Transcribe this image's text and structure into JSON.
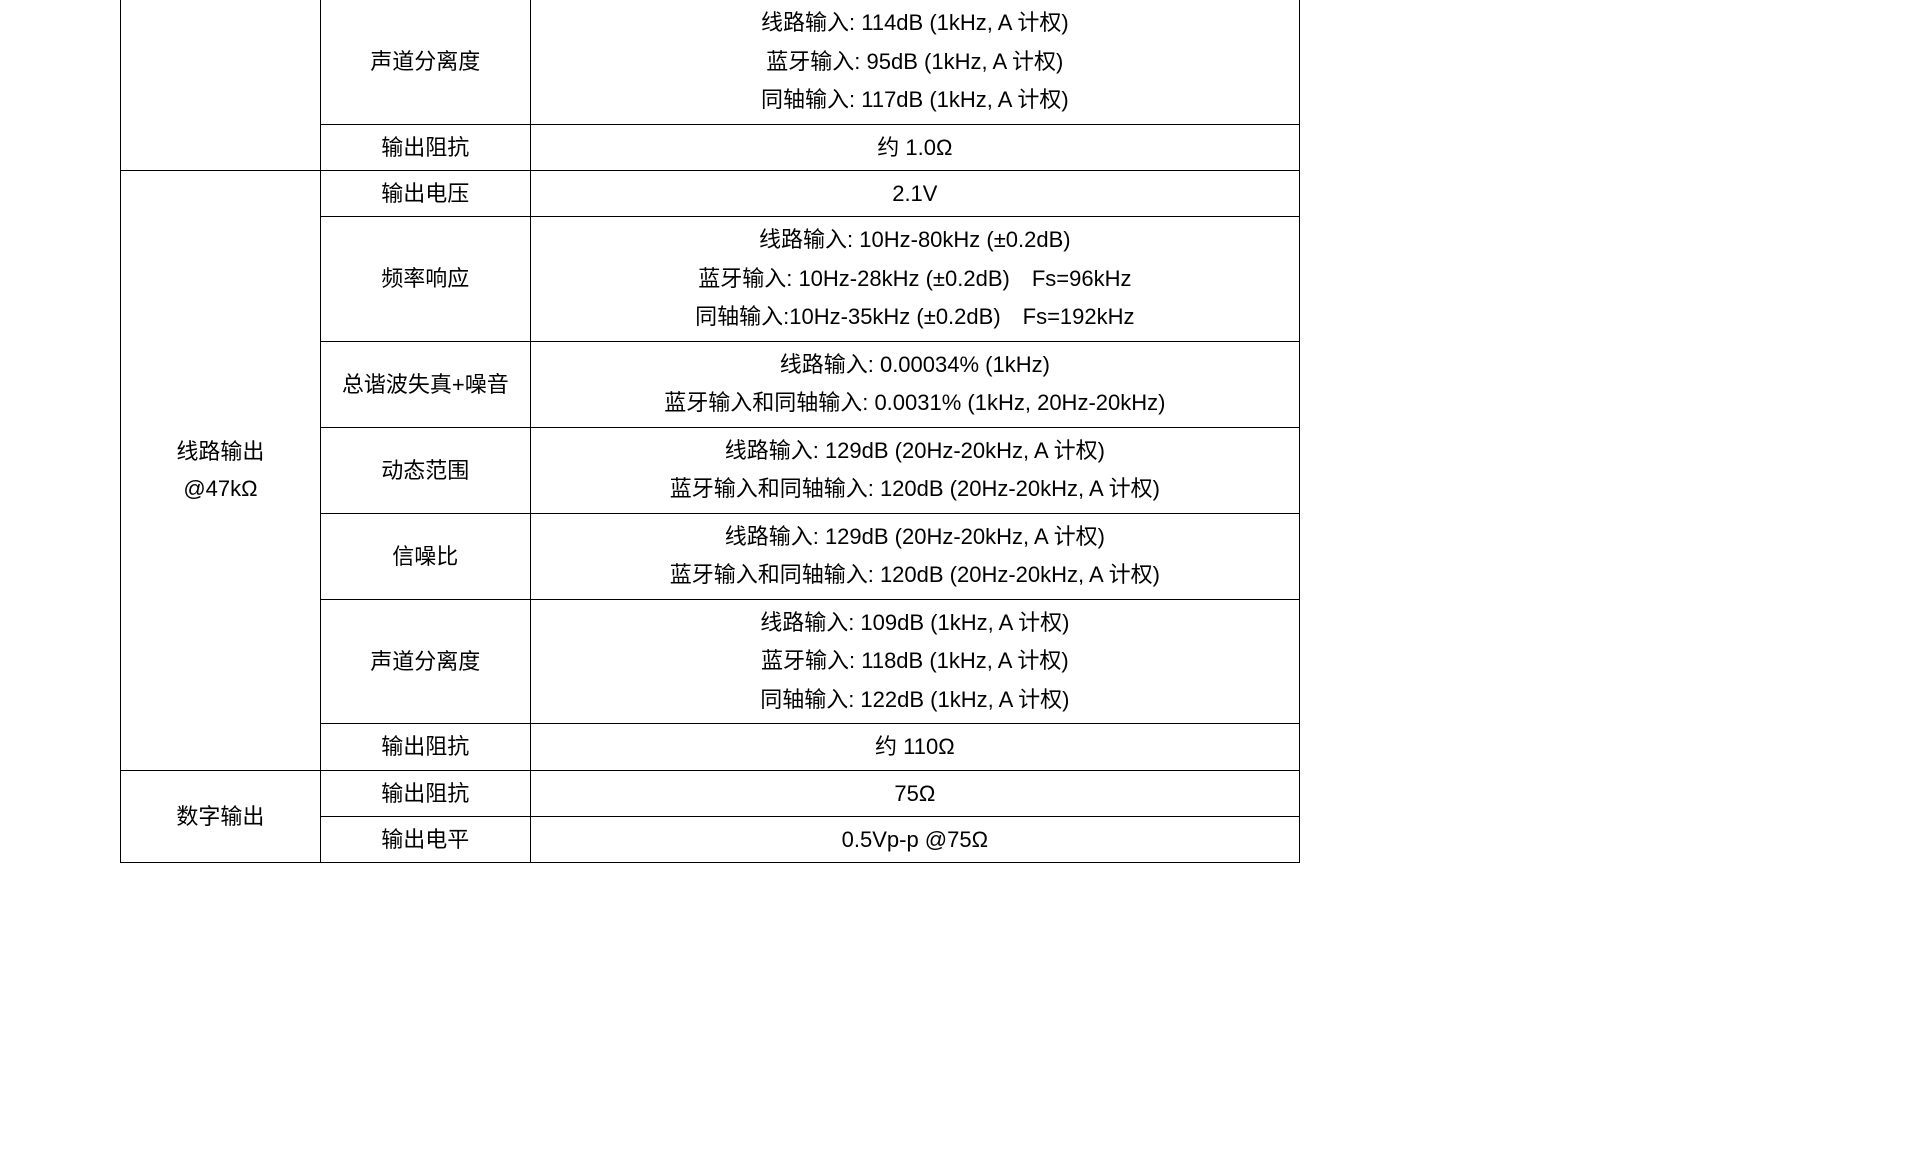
{
  "table": {
    "section0": {
      "row0": {
        "param": "声道分离度",
        "lines": [
          "线路输入: 114dB (1kHz, A 计权)",
          "蓝牙输入: 95dB (1kHz, A 计权)",
          "同轴输入: 117dB (1kHz, A 计权)"
        ]
      },
      "row1": {
        "param": "输出阻抗",
        "value": "约 1.0Ω"
      }
    },
    "section1": {
      "label_line1": "线路输出",
      "label_line2": "@47kΩ",
      "row0": {
        "param": "输出电压",
        "value": "2.1V"
      },
      "row1": {
        "param": "频率响应",
        "lines": [
          "线路输入: 10Hz-80kHz (±0.2dB)",
          "蓝牙输入: 10Hz-28kHz (±0.2dB)　Fs=96kHz",
          "同轴输入:10Hz-35kHz (±0.2dB)　Fs=192kHz"
        ]
      },
      "row2": {
        "param": "总谐波失真+噪音",
        "lines": [
          "线路输入: 0.00034% (1kHz)",
          "蓝牙输入和同轴输入: 0.0031%  (1kHz, 20Hz-20kHz)"
        ]
      },
      "row3": {
        "param": "动态范围",
        "lines": [
          "线路输入: 129dB (20Hz-20kHz, A 计权)",
          "蓝牙输入和同轴输入: 120dB (20Hz-20kHz, A 计权)"
        ]
      },
      "row4": {
        "param": "信噪比",
        "lines": [
          "线路输入: 129dB (20Hz-20kHz, A 计权)",
          "蓝牙输入和同轴输入: 120dB (20Hz-20kHz, A 计权)"
        ]
      },
      "row5": {
        "param": "声道分离度",
        "lines": [
          "线路输入: 109dB (1kHz, A 计权)",
          "蓝牙输入: 118dB (1kHz, A 计权)",
          "同轴输入: 122dB (1kHz, A 计权)"
        ]
      },
      "row6": {
        "param": "输出阻抗",
        "value": "约 110Ω"
      }
    },
    "section2": {
      "label": "数字输出",
      "row0": {
        "param": "输出阻抗",
        "value": "75Ω"
      },
      "row1": {
        "param": "输出电平",
        "value": "0.5Vp-p @75Ω"
      }
    }
  }
}
